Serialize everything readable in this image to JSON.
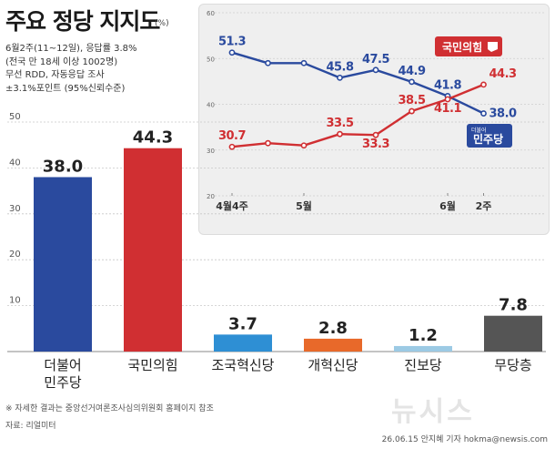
{
  "title": "주요 정당 지지도",
  "title_unit": "(%)",
  "survey_info": [
    "6월2주(11~12일), 응답률 3.8%",
    "(전국 만 18세 이상 1002명)",
    "무선 RDD, 자동응답 조사",
    "±3.1%포인트 (95%신뢰수준)"
  ],
  "footnote": "※ 자세한 결과는 중앙선거여론조사심의위원회 홈페이지 참조",
  "source": "자료: 리얼미터",
  "credit": "26.06.15 안지혜 기자 hokma@newsis.com",
  "watermark": "뉴시스",
  "colors": {
    "democratic": "#2a4a9e",
    "ppp": "#d02f32",
    "rebuilding": "#2e8fd4",
    "reform": "#e8692a",
    "progressive": "#9ccae4",
    "none": "#555555"
  },
  "chart_data": [
    {
      "type": "bar",
      "categories": [
        "더불어\n민주당",
        "국민의힘",
        "조국혁신당",
        "개혁신당",
        "진보당",
        "무당층"
      ],
      "values": [
        38.0,
        44.3,
        3.7,
        2.8,
        1.2,
        7.8
      ],
      "value_labels": [
        "38.0",
        "44.3",
        "3.7",
        "2.8",
        "1.2",
        "7.8"
      ],
      "bar_colors": [
        "#2a4a9e",
        "#d02f32",
        "#2e8fd4",
        "#e8692a",
        "#9ccae4",
        "#555555"
      ],
      "yticks": [
        10,
        20,
        30,
        40,
        50
      ],
      "ylim": [
        0,
        50
      ],
      "grid": true
    },
    {
      "type": "line",
      "x_labels": [
        "4월4주",
        "5월",
        "6월",
        "2주"
      ],
      "x_label_positions": [
        0,
        2,
        6,
        7
      ],
      "yticks": [
        20,
        30,
        40,
        50,
        60
      ],
      "ylim": [
        20,
        60
      ],
      "series": [
        {
          "name": "민주당",
          "values": [
            51.3,
            49.0,
            49.0,
            45.8,
            47.5,
            44.9,
            41.8,
            38.0
          ],
          "labels": [
            "51.3",
            "",
            "",
            "45.8",
            "47.5",
            "44.9",
            "41.8",
            "38.0"
          ],
          "color": "#2a4a9e",
          "label_prefix": "더불어"
        },
        {
          "name": "국민의힘",
          "values": [
            30.7,
            31.5,
            31.0,
            33.5,
            33.3,
            38.5,
            41.1,
            44.3
          ],
          "labels": [
            "30.7",
            "",
            "",
            "33.5",
            "33.3",
            "38.5",
            "41.1",
            "44.3"
          ],
          "color": "#d02f32"
        }
      ],
      "grid": true
    }
  ]
}
